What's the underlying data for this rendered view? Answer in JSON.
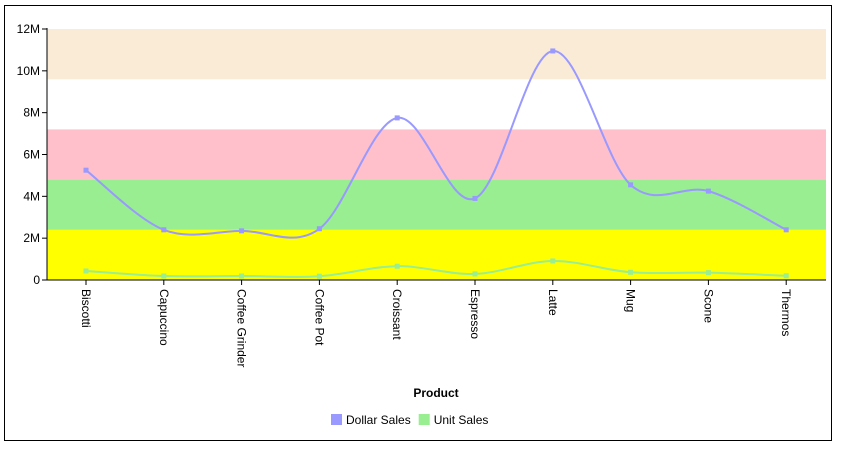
{
  "chart_data": {
    "type": "line",
    "xlabel": "Product",
    "ylabel": "",
    "categories": [
      "Biscotti",
      "Capuccino",
      "Coffee Grinder",
      "Coffee Pot",
      "Croissant",
      "Espresso",
      "Latte",
      "Mug",
      "Scone",
      "Thermos"
    ],
    "ylim": [
      0,
      12000000
    ],
    "yticks": [
      {
        "value": 0,
        "label": "0"
      },
      {
        "value": 2000000,
        "label": "2M"
      },
      {
        "value": 4000000,
        "label": "4M"
      },
      {
        "value": 6000000,
        "label": "6M"
      },
      {
        "value": 8000000,
        "label": "8M"
      },
      {
        "value": 10000000,
        "label": "10M"
      },
      {
        "value": 12000000,
        "label": "12M"
      }
    ],
    "bands": [
      {
        "from": 0,
        "to": 2400000,
        "color": "#ffff00"
      },
      {
        "from": 2400000,
        "to": 4800000,
        "color": "#98ee90"
      },
      {
        "from": 4800000,
        "to": 7200000,
        "color": "#ffc0cb"
      },
      {
        "from": 9600000,
        "to": 12000000,
        "color": "#faebd7"
      }
    ],
    "series": [
      {
        "name": "Dollar Sales",
        "color": "#9999ff",
        "values": [
          5250000,
          2400000,
          2350000,
          2450000,
          7750000,
          3900000,
          10950000,
          4550000,
          4250000,
          2400000
        ]
      },
      {
        "name": "Unit Sales",
        "color": "#98ee90",
        "values": [
          430000,
          190000,
          190000,
          180000,
          660000,
          290000,
          910000,
          370000,
          350000,
          200000
        ]
      }
    ],
    "legend_position": "bottom",
    "grid": false
  }
}
